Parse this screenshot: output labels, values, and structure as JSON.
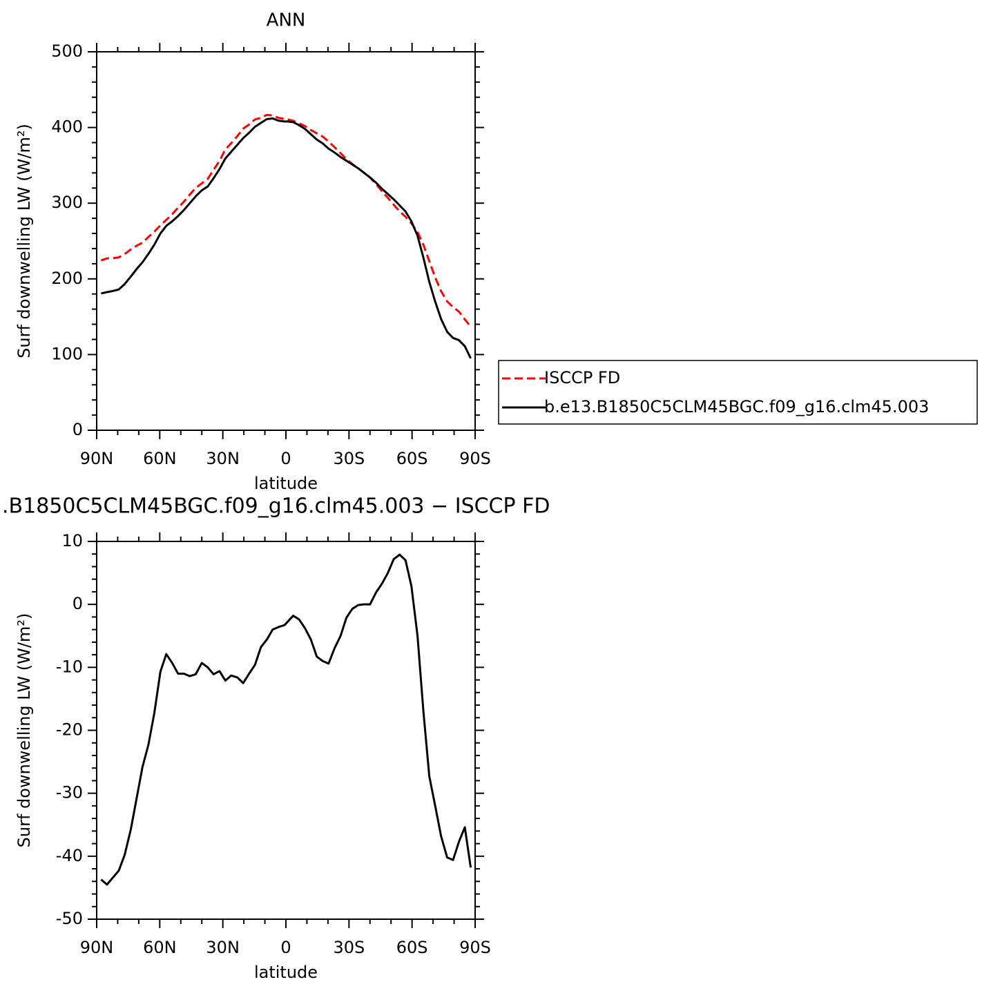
{
  "chart_data": [
    {
      "type": "line",
      "title": "ANN",
      "xlabel": "latitude",
      "ylabel": "Surf downwelling LW (W/m²)",
      "x": [
        87.9,
        85.1,
        82.3,
        79.5,
        76.7,
        73.8,
        71.0,
        68.2,
        65.4,
        62.6,
        59.7,
        56.9,
        54.1,
        51.3,
        48.5,
        45.7,
        42.9,
        40.0,
        37.2,
        34.4,
        31.6,
        28.8,
        26.0,
        23.1,
        20.3,
        17.5,
        14.7,
        11.9,
        9.1,
        6.3,
        3.5,
        0.7,
        -0.7,
        -3.5,
        -6.3,
        -9.1,
        -11.9,
        -14.7,
        -17.5,
        -20.3,
        -23.1,
        -26.0,
        -28.8,
        -31.6,
        -34.4,
        -37.2,
        -40.0,
        -42.9,
        -45.7,
        -48.5,
        -51.3,
        -54.1,
        -56.9,
        -59.7,
        -62.6,
        -65.4,
        -68.2,
        -71.0,
        -73.8,
        -76.7,
        -79.5,
        -82.3,
        -85.1,
        -87.9
      ],
      "series": [
        {
          "name": "ISCCP FD",
          "color": "#ff0000",
          "linestyle": "dashed",
          "values": [
            224.4,
            227,
            227.4,
            228.3,
            232.8,
            238.8,
            243.8,
            247.8,
            255.3,
            262.3,
            270.7,
            277.9,
            285.3,
            294,
            302,
            311.4,
            320.1,
            326.3,
            332,
            344.1,
            355.6,
            371.1,
            379.3,
            388.6,
            398.5,
            404,
            410.6,
            412.8,
            416.6,
            416,
            412.6,
            411.3,
            410.8,
            408.8,
            405.4,
            401.8,
            396.6,
            392.3,
            388,
            381.4,
            374,
            366,
            358.1,
            351.7,
            346.1,
            340,
            334,
            325.1,
            315.7,
            307,
            297.8,
            289.1,
            282,
            273.1,
            262,
            245,
            223.3,
            202,
            183.8,
            170.2,
            162.6,
            156.7,
            146.4,
            136.8
          ]
        },
        {
          "name": "b.e13.B1850C5CLM45BGC.f09_g16.clm45.003",
          "color": "#000000",
          "linestyle": "solid",
          "values": [
            180.7,
            182.5,
            184,
            186,
            193,
            203,
            213,
            222,
            233,
            245,
            260,
            270,
            276,
            283,
            291,
            300,
            309,
            317,
            322,
            333,
            345,
            359,
            368,
            377,
            386,
            393,
            401,
            406,
            411,
            412,
            409,
            408,
            408,
            407,
            403,
            398,
            391,
            384,
            379,
            372,
            367,
            361,
            356,
            351,
            346,
            340,
            334,
            327,
            319,
            312,
            305,
            297,
            289,
            276,
            257,
            228,
            196,
            170,
            147,
            130,
            122,
            119,
            111,
            95
          ]
        }
      ],
      "xlim": [
        90,
        -90
      ],
      "xticks": [
        {
          "value": 90,
          "label": "90N"
        },
        {
          "value": 60,
          "label": "60N"
        },
        {
          "value": 30,
          "label": "30N"
        },
        0,
        {
          "value": -30,
          "label": "30S"
        },
        {
          "value": -60,
          "label": "60S"
        },
        {
          "value": -90,
          "label": "90S"
        }
      ],
      "ylim": [
        0,
        500
      ],
      "yticks": [
        0,
        100,
        200,
        300,
        400,
        500
      ],
      "legend": "right"
    },
    {
      "type": "line",
      "title": ".B1850C5CLM45BGC.f09_g16.clm45.003 − ISCCP FD",
      "xlabel": "latitude",
      "ylabel": "Surf downwelling LW (W/m²)",
      "x": [
        87.9,
        85.1,
        82.3,
        79.5,
        76.7,
        73.8,
        71.0,
        68.2,
        65.4,
        62.6,
        59.7,
        56.9,
        54.1,
        51.3,
        48.5,
        45.7,
        42.9,
        40.0,
        37.2,
        34.4,
        31.6,
        28.8,
        26.0,
        23.1,
        20.3,
        17.5,
        14.7,
        11.9,
        9.1,
        6.3,
        3.5,
        0.7,
        -0.7,
        -3.5,
        -6.3,
        -9.1,
        -11.9,
        -14.7,
        -17.5,
        -20.3,
        -23.1,
        -26.0,
        -28.8,
        -31.6,
        -34.4,
        -37.2,
        -40.0,
        -42.9,
        -45.7,
        -48.5,
        -51.3,
        -54.1,
        -56.9,
        -59.7,
        -62.6,
        -65.4,
        -68.2,
        -71.0,
        -73.8,
        -76.7,
        -79.5,
        -82.3,
        -85.1,
        -87.9
      ],
      "values": [
        -43.7,
        -44.5,
        -43.4,
        -42.3,
        -39.8,
        -35.8,
        -30.8,
        -25.8,
        -22.3,
        -17.3,
        -10.7,
        -7.9,
        -9.3,
        -11.0,
        -11.0,
        -11.4,
        -11.1,
        -9.3,
        -10.0,
        -11.1,
        -10.6,
        -12.1,
        -11.3,
        -11.6,
        -12.5,
        -11.0,
        -9.6,
        -6.8,
        -5.6,
        -4.0,
        -3.6,
        -3.3,
        -2.8,
        -1.8,
        -2.4,
        -3.8,
        -5.6,
        -8.3,
        -9.0,
        -9.4,
        -7.0,
        -5.0,
        -2.1,
        -0.7,
        -0.1,
        0.0,
        0.0,
        1.9,
        3.3,
        5.0,
        7.2,
        7.9,
        7.0,
        2.9,
        -5.0,
        -17.0,
        -27.3,
        -32.0,
        -36.8,
        -40.2,
        -40.6,
        -37.7,
        -35.4,
        -41.8
      ],
      "color": "#000000",
      "xlim": [
        90,
        -90
      ],
      "xticks": [
        {
          "value": 90,
          "label": "90N"
        },
        {
          "value": 60,
          "label": "60N"
        },
        {
          "value": 30,
          "label": "30N"
        },
        0,
        {
          "value": -30,
          "label": "30S"
        },
        {
          "value": -60,
          "label": "60S"
        },
        {
          "value": -90,
          "label": "90S"
        }
      ],
      "ylim": [
        -50,
        10
      ],
      "yticks": [
        -50,
        -40,
        -30,
        -20,
        -10,
        0,
        10
      ]
    }
  ]
}
